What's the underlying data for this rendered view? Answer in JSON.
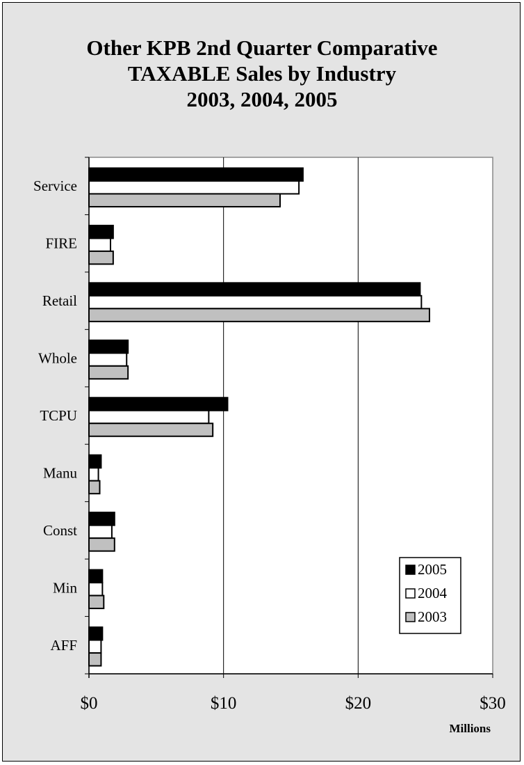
{
  "chart_data": {
    "type": "bar",
    "orientation": "horizontal",
    "title_lines": [
      "Other KPB 2nd Quarter Comparative",
      "TAXABLE Sales by Industry",
      "2003, 2004, 2005"
    ],
    "categories": [
      "Service",
      "FIRE",
      "Retail",
      "Whole",
      "TCPU",
      "Manu",
      "Const",
      "Min",
      "AFF"
    ],
    "series": [
      {
        "name": "2005",
        "color": "#000000",
        "values": [
          15.9,
          1.8,
          24.6,
          2.9,
          10.3,
          0.9,
          1.9,
          1.0,
          1.0
        ]
      },
      {
        "name": "2004",
        "color": "#ffffff",
        "values": [
          15.6,
          1.6,
          24.7,
          2.8,
          8.9,
          0.7,
          1.7,
          1.0,
          0.9
        ]
      },
      {
        "name": "2003",
        "color": "#c0c0c0",
        "values": [
          14.2,
          1.8,
          25.3,
          2.9,
          9.2,
          0.8,
          1.9,
          1.1,
          0.9
        ]
      }
    ],
    "xlim": [
      0,
      30
    ],
    "x_ticks": [
      0,
      10,
      20,
      30
    ],
    "x_tick_labels": [
      "$0",
      "$10",
      "$20",
      "$30"
    ],
    "xlabel": "Millions",
    "ylabel": "",
    "grid": "vertical",
    "legend": "bottom-right",
    "plot_background": "#ffffff",
    "frame_background": "#e4e4e4"
  }
}
